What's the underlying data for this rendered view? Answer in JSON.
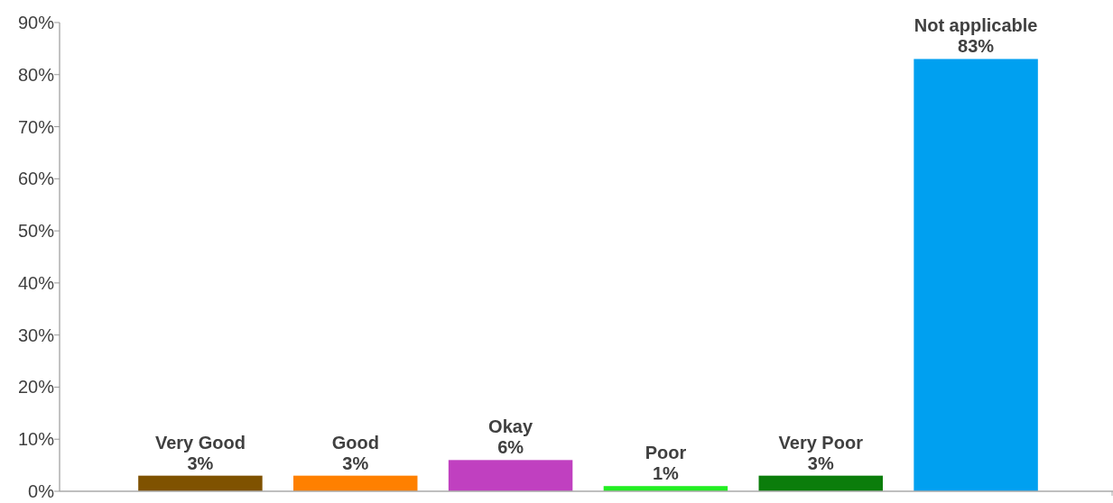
{
  "chart_data": {
    "type": "bar",
    "categories": [
      "Very Good",
      "Good",
      "Okay",
      "Poor",
      "Very Poor",
      "Not applicable"
    ],
    "values": [
      3,
      3,
      6,
      1,
      3,
      83
    ],
    "colors": [
      "#7f5200",
      "#ff8000",
      "#c040c0",
      "#22ee22",
      "#0b7d0b",
      "#00a0f0"
    ],
    "value_labels": [
      "3%",
      "3%",
      "6%",
      "1%",
      "3%",
      "83%"
    ],
    "ylim": [
      0,
      90
    ],
    "yticks": [
      {
        "value": 0,
        "label": "0%"
      },
      {
        "value": 10,
        "label": "10%"
      },
      {
        "value": 20,
        "label": "20%"
      },
      {
        "value": 30,
        "label": "30%"
      },
      {
        "value": 40,
        "label": "40%"
      },
      {
        "value": 50,
        "label": "50%"
      },
      {
        "value": 60,
        "label": "60%"
      },
      {
        "value": 70,
        "label": "70%"
      },
      {
        "value": 80,
        "label": "80%"
      },
      {
        "value": 90,
        "label": "90%"
      }
    ],
    "grid": false
  }
}
